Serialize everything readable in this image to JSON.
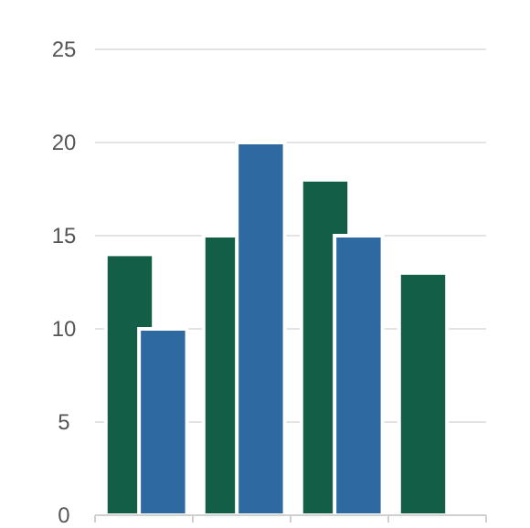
{
  "chart_data": {
    "type": "bar",
    "categories": [
      null,
      null,
      null,
      null
    ],
    "series": [
      {
        "color": "#135e46",
        "values": [
          14,
          15,
          18,
          13
        ]
      },
      {
        "color": "#2e6aa1",
        "values": [
          10,
          20,
          15,
          null
        ]
      }
    ],
    "ylim": [
      0,
      25
    ],
    "yticks": [
      0,
      5,
      10,
      15,
      20,
      25
    ],
    "grid": "y"
  }
}
